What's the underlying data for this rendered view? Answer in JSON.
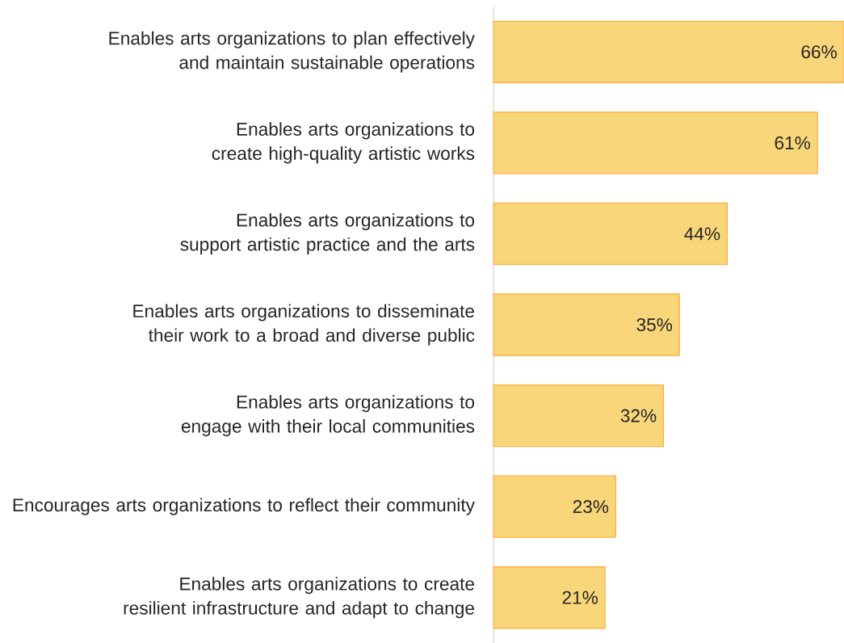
{
  "chart_data": {
    "type": "bar",
    "orientation": "horizontal",
    "categories": [
      "Enables arts organizations to plan effectively and maintain sustainable operations",
      "Enables arts organizations to create high-quality artistic works",
      "Enables arts organizations to support artistic practice and the arts",
      "Enables arts organizations to disseminate their work to a broad and diverse public",
      "Enables arts organizations to engage with their local communities",
      "Encourages arts organizations to reflect their community",
      "Enables arts organizations to create resilient infrastructure and adapt to change"
    ],
    "values": [
      66,
      61,
      44,
      35,
      32,
      23,
      21
    ],
    "value_labels": [
      "66%",
      "61%",
      "44%",
      "35%",
      "32%",
      "23%",
      "21%"
    ],
    "color": "#f9d67a"
  }
}
